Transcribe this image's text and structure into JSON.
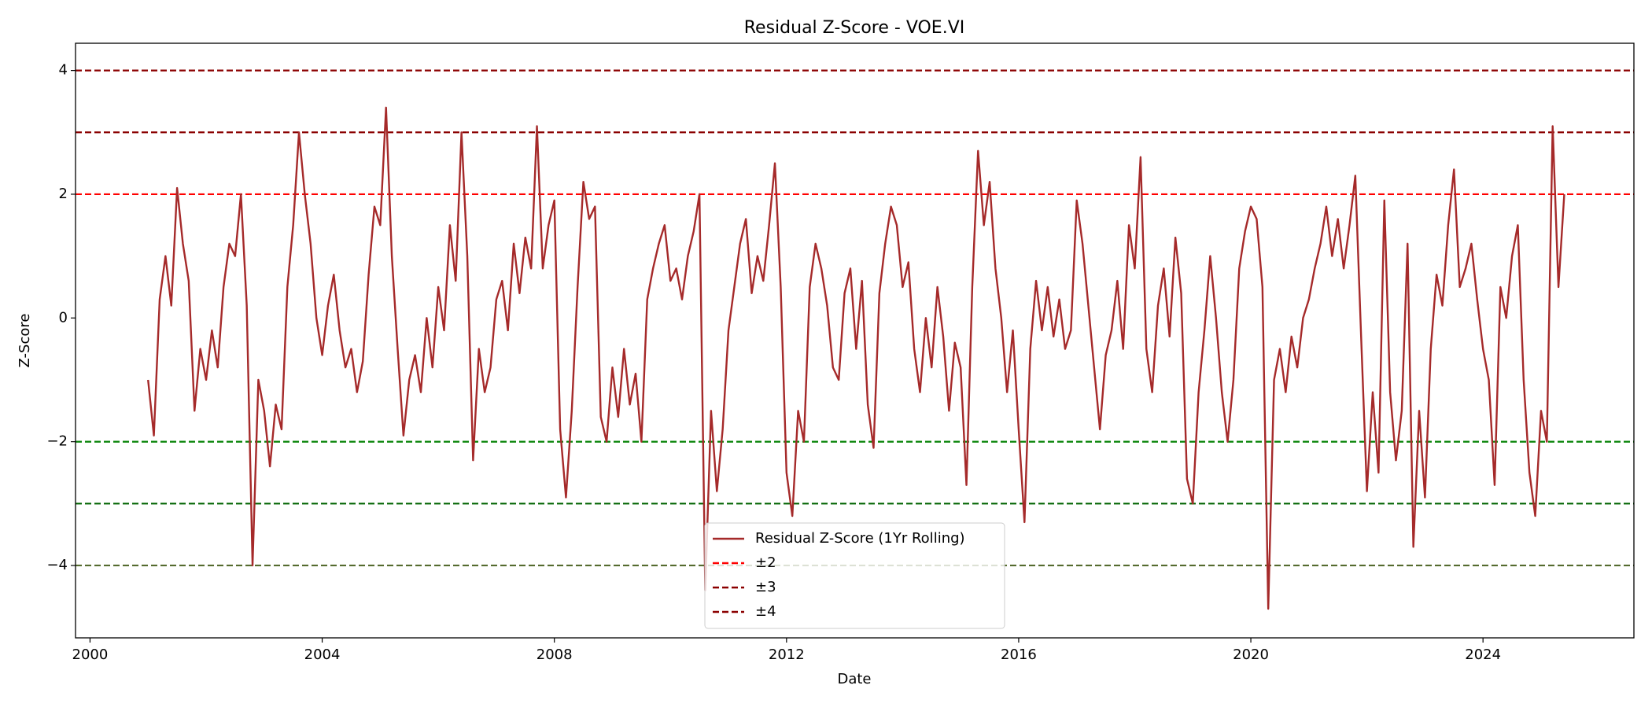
{
  "chart_data": {
    "type": "line",
    "title": "Residual Z-Score - VOE.VI",
    "xlabel": "Date",
    "ylabel": "Z-Score",
    "x": [
      2001.0,
      2001.1,
      2001.2,
      2001.3,
      2001.4,
      2001.5,
      2001.6,
      2001.7,
      2001.8,
      2001.9,
      2002.0,
      2002.1,
      2002.2,
      2002.3,
      2002.4,
      2002.5,
      2002.6,
      2002.7,
      2002.8,
      2002.9,
      2003.0,
      2003.1,
      2003.2,
      2003.3,
      2003.4,
      2003.5,
      2003.6,
      2003.7,
      2003.8,
      2003.9,
      2004.0,
      2004.1,
      2004.2,
      2004.3,
      2004.4,
      2004.5,
      2004.6,
      2004.7,
      2004.8,
      2004.9,
      2005.0,
      2005.1,
      2005.2,
      2005.3,
      2005.4,
      2005.5,
      2005.6,
      2005.7,
      2005.8,
      2005.9,
      2006.0,
      2006.1,
      2006.2,
      2006.3,
      2006.4,
      2006.5,
      2006.6,
      2006.7,
      2006.8,
      2006.9,
      2007.0,
      2007.1,
      2007.2,
      2007.3,
      2007.4,
      2007.5,
      2007.6,
      2007.7,
      2007.8,
      2007.9,
      2008.0,
      2008.1,
      2008.2,
      2008.3,
      2008.4,
      2008.5,
      2008.6,
      2008.7,
      2008.8,
      2008.9,
      2009.0,
      2009.1,
      2009.2,
      2009.3,
      2009.4,
      2009.5,
      2009.6,
      2009.7,
      2009.8,
      2009.9,
      2010.0,
      2010.1,
      2010.2,
      2010.3,
      2010.4,
      2010.5,
      2010.6,
      2010.7,
      2010.8,
      2010.9,
      2011.0,
      2011.1,
      2011.2,
      2011.3,
      2011.4,
      2011.5,
      2011.6,
      2011.7,
      2011.8,
      2011.9,
      2012.0,
      2012.1,
      2012.2,
      2012.3,
      2012.4,
      2012.5,
      2012.6,
      2012.7,
      2012.8,
      2012.9,
      2013.0,
      2013.1,
      2013.2,
      2013.3,
      2013.4,
      2013.5,
      2013.6,
      2013.7,
      2013.8,
      2013.9,
      2014.0,
      2014.1,
      2014.2,
      2014.3,
      2014.4,
      2014.5,
      2014.6,
      2014.7,
      2014.8,
      2014.9,
      2015.0,
      2015.1,
      2015.2,
      2015.3,
      2015.4,
      2015.5,
      2015.6,
      2015.7,
      2015.8,
      2015.9,
      2016.0,
      2016.1,
      2016.2,
      2016.3,
      2016.4,
      2016.5,
      2016.6,
      2016.7,
      2016.8,
      2016.9,
      2017.0,
      2017.1,
      2017.2,
      2017.3,
      2017.4,
      2017.5,
      2017.6,
      2017.7,
      2017.8,
      2017.9,
      2018.0,
      2018.1,
      2018.2,
      2018.3,
      2018.4,
      2018.5,
      2018.6,
      2018.7,
      2018.8,
      2018.9,
      2019.0,
      2019.1,
      2019.2,
      2019.3,
      2019.4,
      2019.5,
      2019.6,
      2019.7,
      2019.8,
      2019.9,
      2020.0,
      2020.1,
      2020.2,
      2020.3,
      2020.4,
      2020.5,
      2020.6,
      2020.7,
      2020.8,
      2020.9,
      2021.0,
      2021.1,
      2021.2,
      2021.3,
      2021.4,
      2021.5,
      2021.6,
      2021.7,
      2021.8,
      2021.9,
      2022.0,
      2022.1,
      2022.2,
      2022.3,
      2022.4,
      2022.5,
      2022.6,
      2022.7,
      2022.8,
      2022.9,
      2023.0,
      2023.1,
      2023.2,
      2023.3,
      2023.4,
      2023.5,
      2023.6,
      2023.7,
      2023.8,
      2023.9,
      2024.0,
      2024.1,
      2024.2,
      2024.3,
      2024.4,
      2024.5,
      2024.6,
      2024.7,
      2024.8,
      2024.9,
      2025.0,
      2025.1,
      2025.2,
      2025.3,
      2025.4
    ],
    "series": [
      {
        "name": "Residual Z-Score (1Yr Rolling)",
        "color": "#a52a2a",
        "values": [
          -1.0,
          -1.9,
          0.3,
          1.0,
          0.2,
          2.1,
          1.2,
          0.6,
          -1.5,
          -0.5,
          -1.0,
          -0.2,
          -0.8,
          0.5,
          1.2,
          1.0,
          2.0,
          0.2,
          -4.0,
          -1.0,
          -1.5,
          -2.4,
          -1.4,
          -1.8,
          0.5,
          1.5,
          3.0,
          2.0,
          1.2,
          0.0,
          -0.6,
          0.2,
          0.7,
          -0.2,
          -0.8,
          -0.5,
          -1.2,
          -0.7,
          0.7,
          1.8,
          1.5,
          3.4,
          1.0,
          -0.5,
          -1.9,
          -1.0,
          -0.6,
          -1.2,
          0.0,
          -0.8,
          0.5,
          -0.2,
          1.5,
          0.6,
          3.0,
          1.0,
          -2.3,
          -0.5,
          -1.2,
          -0.8,
          0.3,
          0.6,
          -0.2,
          1.2,
          0.4,
          1.3,
          0.8,
          3.1,
          0.8,
          1.5,
          1.9,
          -1.8,
          -2.9,
          -1.5,
          0.5,
          2.2,
          1.6,
          1.8,
          -1.6,
          -2.0,
          -0.8,
          -1.6,
          -0.5,
          -1.4,
          -0.9,
          -2.0,
          0.3,
          0.8,
          1.2,
          1.5,
          0.6,
          0.8,
          0.3,
          1.0,
          1.4,
          2.0,
          -4.4,
          -1.5,
          -2.8,
          -1.8,
          -0.2,
          0.5,
          1.2,
          1.6,
          0.4,
          1.0,
          0.6,
          1.5,
          2.5,
          0.5,
          -2.5,
          -3.2,
          -1.5,
          -2.0,
          0.5,
          1.2,
          0.8,
          0.2,
          -0.8,
          -1.0,
          0.4,
          0.8,
          -0.5,
          0.6,
          -1.4,
          -2.1,
          0.4,
          1.2,
          1.8,
          1.5,
          0.5,
          0.9,
          -0.5,
          -1.2,
          0.0,
          -0.8,
          0.5,
          -0.3,
          -1.5,
          -0.4,
          -0.8,
          -2.7,
          0.5,
          2.7,
          1.5,
          2.2,
          0.8,
          0.0,
          -1.2,
          -0.2,
          -1.8,
          -3.3,
          -0.5,
          0.6,
          -0.2,
          0.5,
          -0.3,
          0.3,
          -0.5,
          -0.2,
          1.9,
          1.2,
          0.2,
          -0.8,
          -1.8,
          -0.6,
          -0.2,
          0.6,
          -0.5,
          1.5,
          0.8,
          2.6,
          -0.5,
          -1.2,
          0.2,
          0.8,
          -0.3,
          1.3,
          0.4,
          -2.6,
          -3.0,
          -1.2,
          -0.2,
          1.0,
          0.0,
          -1.2,
          -2.0,
          -1.0,
          0.8,
          1.4,
          1.8,
          1.6,
          0.5,
          -4.7,
          -1.0,
          -0.5,
          -1.2,
          -0.3,
          -0.8,
          0.0,
          0.3,
          0.8,
          1.2,
          1.8,
          1.0,
          1.6,
          0.8,
          1.5,
          2.3,
          -0.3,
          -2.8,
          -1.2,
          -2.5,
          1.9,
          -1.2,
          -2.3,
          -1.5,
          1.2,
          -3.7,
          -1.5,
          -2.9,
          -0.5,
          0.7,
          0.2,
          1.5,
          2.4,
          0.5,
          0.8,
          1.2,
          0.3,
          -0.5,
          -1.0,
          -2.7,
          0.5,
          0.0,
          1.0,
          1.5,
          -1.0,
          -2.5,
          -3.2,
          -1.5,
          -2.0,
          3.1,
          0.5,
          2.0
        ]
      }
    ],
    "reference_lines": [
      {
        "name": "±2",
        "color": "#ff0000",
        "levels": [
          2,
          -2
        ],
        "level_colors": [
          "#ff0000",
          "#008000"
        ]
      },
      {
        "name": "±3",
        "color": "#8b0000",
        "levels": [
          3,
          -3
        ],
        "level_colors": [
          "#8b0000",
          "#006400"
        ]
      },
      {
        "name": "±4",
        "color": "#8b0000",
        "levels": [
          4,
          -4
        ],
        "level_colors": [
          "#8b0000",
          "#556b2f"
        ]
      }
    ],
    "xlim": [
      1999.75,
      2026.6
    ],
    "ylim": [
      -5.17,
      4.44
    ],
    "xticks": [
      2000,
      2004,
      2008,
      2012,
      2016,
      2020,
      2024
    ],
    "yticks": [
      4,
      2,
      0,
      {
        "value": -2,
        "label": "−2"
      },
      {
        "value": -4,
        "label": "−4"
      }
    ],
    "legend_loc": "lower center"
  }
}
